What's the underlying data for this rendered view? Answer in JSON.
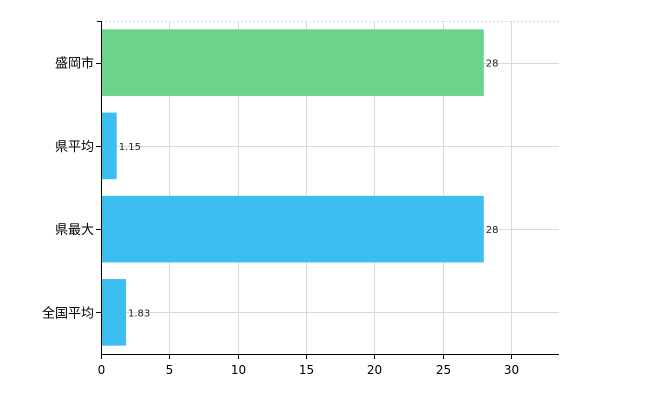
{
  "chart_data": {
    "type": "bar",
    "orientation": "horizontal",
    "title": "",
    "xlabel": "",
    "ylabel": "",
    "categories": [
      "盛岡市",
      "県平均",
      "県最大",
      "全国平均"
    ],
    "values": [
      28,
      1.15,
      28,
      1.83
    ],
    "value_labels": [
      "28",
      "1.15",
      "28",
      "1.83"
    ],
    "bar_colors": [
      "#6dd38c",
      "#3cbef0",
      "#3cbef0",
      "#3cbef0"
    ],
    "xlim": [
      0,
      33.5
    ],
    "x_ticks": [
      0,
      5,
      10,
      15,
      20,
      25,
      30
    ],
    "grid": true,
    "legend": "none"
  }
}
